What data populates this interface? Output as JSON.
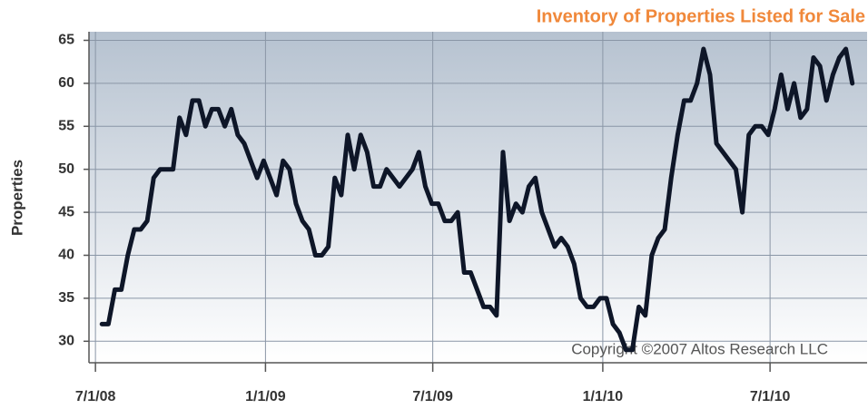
{
  "chart_data": {
    "type": "line",
    "title": "Inventory of Properties Listed for Sale",
    "y_label": "Properties",
    "annotation": "Copyright ©2007 Altos Research LLC",
    "x": [
      "2008-07-08",
      "2008-07-15",
      "2008-07-22",
      "2008-07-29",
      "2008-08-05",
      "2008-08-12",
      "2008-08-19",
      "2008-08-26",
      "2008-09-02",
      "2008-09-09",
      "2008-09-16",
      "2008-09-23",
      "2008-09-30",
      "2008-10-07",
      "2008-10-14",
      "2008-10-21",
      "2008-10-28",
      "2008-11-04",
      "2008-11-11",
      "2008-11-18",
      "2008-11-25",
      "2008-12-02",
      "2008-12-09",
      "2008-12-16",
      "2008-12-23",
      "2008-12-30",
      "2009-01-06",
      "2009-01-13",
      "2009-01-20",
      "2009-01-27",
      "2009-02-03",
      "2009-02-10",
      "2009-02-17",
      "2009-02-24",
      "2009-03-03",
      "2009-03-10",
      "2009-03-17",
      "2009-03-24",
      "2009-03-31",
      "2009-04-07",
      "2009-04-14",
      "2009-04-21",
      "2009-04-28",
      "2009-05-05",
      "2009-05-12",
      "2009-05-19",
      "2009-05-26",
      "2009-06-02",
      "2009-06-09",
      "2009-06-16",
      "2009-06-23",
      "2009-06-30",
      "2009-07-07",
      "2009-07-14",
      "2009-07-21",
      "2009-07-28",
      "2009-08-04",
      "2009-08-11",
      "2009-08-18",
      "2009-08-25",
      "2009-09-01",
      "2009-09-08",
      "2009-09-15",
      "2009-09-22",
      "2009-09-29",
      "2009-10-06",
      "2009-10-13",
      "2009-10-20",
      "2009-10-27",
      "2009-11-03",
      "2009-11-10",
      "2009-11-17",
      "2009-11-24",
      "2009-12-01",
      "2009-12-08",
      "2009-12-15",
      "2009-12-22",
      "2009-12-29",
      "2010-01-05",
      "2010-01-12",
      "2010-01-19",
      "2010-01-26",
      "2010-02-02",
      "2010-02-09",
      "2010-02-16",
      "2010-02-23",
      "2010-03-02",
      "2010-03-09",
      "2010-03-16",
      "2010-03-23",
      "2010-03-30",
      "2010-04-06",
      "2010-04-13",
      "2010-04-20",
      "2010-04-27",
      "2010-05-04",
      "2010-05-11",
      "2010-05-18",
      "2010-05-25",
      "2010-06-01",
      "2010-06-08",
      "2010-06-15",
      "2010-06-22",
      "2010-06-29",
      "2010-07-06",
      "2010-07-13",
      "2010-07-20",
      "2010-07-27",
      "2010-08-03",
      "2010-08-10",
      "2010-08-17",
      "2010-08-24",
      "2010-08-31",
      "2010-09-07",
      "2010-09-14",
      "2010-09-21",
      "2010-09-28"
    ],
    "series": [
      {
        "name": "Properties",
        "color": "#0e1628",
        "values": [
          32,
          32,
          36,
          36,
          40,
          43,
          43,
          44,
          49,
          50,
          50,
          50,
          56,
          54,
          58,
          58,
          55,
          57,
          57,
          55,
          57,
          54,
          53,
          51,
          49,
          51,
          49,
          47,
          51,
          50,
          46,
          44,
          43,
          40,
          40,
          41,
          49,
          47,
          54,
          50,
          54,
          52,
          48,
          48,
          50,
          49,
          48,
          49,
          50,
          52,
          48,
          46,
          46,
          44,
          44,
          45,
          38,
          38,
          36,
          34,
          34,
          33,
          52,
          44,
          46,
          45,
          48,
          49,
          45,
          43,
          41,
          42,
          41,
          39,
          35,
          34,
          34,
          35,
          35,
          32,
          31,
          29,
          29,
          34,
          33,
          40,
          42,
          43,
          49,
          54,
          58,
          58,
          60,
          64,
          61,
          53,
          52,
          51,
          50,
          45,
          54,
          55,
          55,
          54,
          57,
          61,
          57,
          60,
          56,
          57,
          63,
          62,
          58,
          61,
          63,
          64,
          60
        ]
      }
    ],
    "xlim": [
      "2008-06-24",
      "2010-10-14"
    ],
    "xticks": [
      {
        "value": "2008-07-01",
        "label": "7/1/08"
      },
      {
        "value": "2009-01-01",
        "label": "1/1/09"
      },
      {
        "value": "2009-07-01",
        "label": "7/1/09"
      },
      {
        "value": "2010-01-01",
        "label": "1/1/10"
      },
      {
        "value": "2010-07-01",
        "label": "7/1/10"
      }
    ],
    "ylim": [
      27.5,
      66
    ],
    "yticks": [
      30,
      35,
      40,
      45,
      50,
      55,
      60,
      65
    ],
    "grid": true
  }
}
